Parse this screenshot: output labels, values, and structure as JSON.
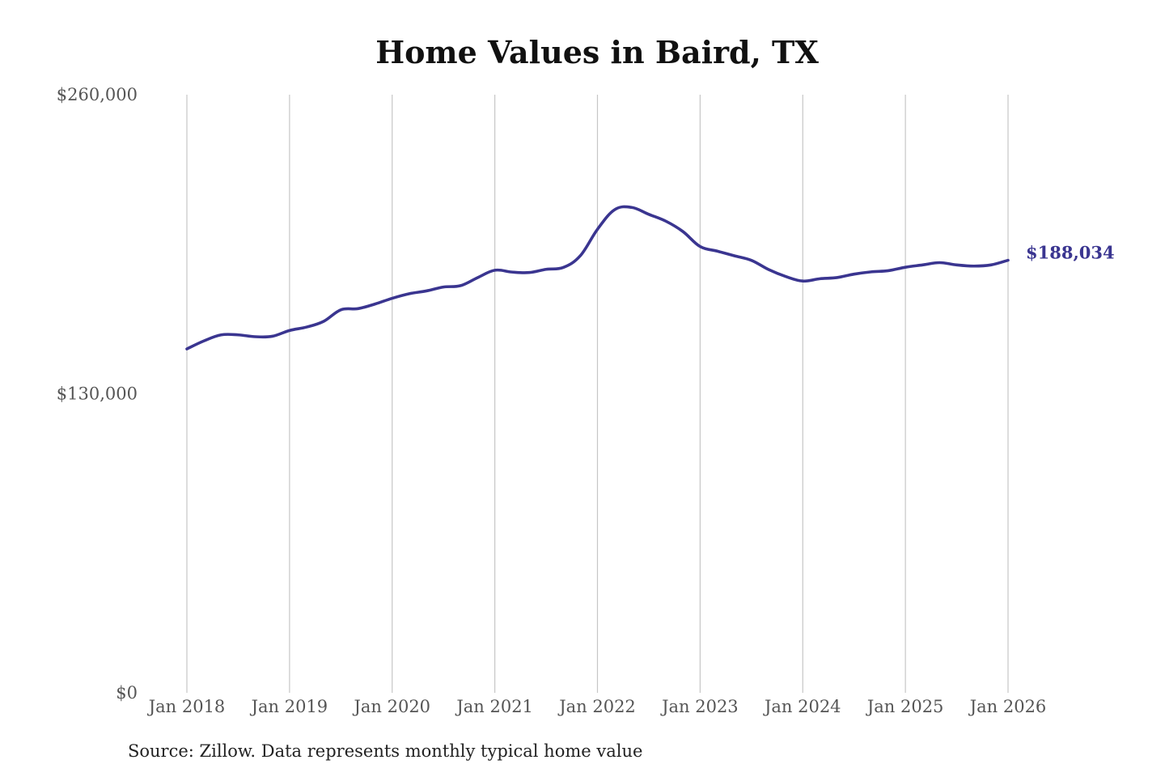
{
  "chart_data": {
    "type": "line",
    "title": "Home Values in Baird, TX",
    "source": "Source: Zillow. Data represents monthly typical home value",
    "ylim": [
      0,
      260000
    ],
    "yticks": [
      {
        "value": 0,
        "label": "$0"
      },
      {
        "value": 130000,
        "label": "$130,000"
      },
      {
        "value": 260000,
        "label": "$260,000"
      }
    ],
    "xticks": [
      {
        "value": 2018,
        "label": "Jan 2018"
      },
      {
        "value": 2019,
        "label": "Jan 2019"
      },
      {
        "value": 2020,
        "label": "Jan 2020"
      },
      {
        "value": 2021,
        "label": "Jan 2021"
      },
      {
        "value": 2022,
        "label": "Jan 2022"
      },
      {
        "value": 2023,
        "label": "Jan 2023"
      },
      {
        "value": 2024,
        "label": "Jan 2024"
      },
      {
        "value": 2025,
        "label": "Jan 2025"
      },
      {
        "value": 2026,
        "label": "Jan 2026"
      }
    ],
    "xlim": [
      2018,
      2026
    ],
    "grid": "vertical",
    "line_color": "#3a3590",
    "end_label": "$188,034",
    "series": [
      {
        "x": [
          "2018-01",
          "2018-03",
          "2018-05",
          "2018-07",
          "2018-09",
          "2018-11",
          "2019-01",
          "2019-03",
          "2019-05",
          "2019-07",
          "2019-09",
          "2019-11",
          "2020-01",
          "2020-03",
          "2020-05",
          "2020-07",
          "2020-09",
          "2020-11",
          "2021-01",
          "2021-03",
          "2021-05",
          "2021-07",
          "2021-09",
          "2021-11",
          "2022-01",
          "2022-03",
          "2022-05",
          "2022-07",
          "2022-09",
          "2022-11",
          "2023-01",
          "2023-03",
          "2023-05",
          "2023-07",
          "2023-09",
          "2023-11",
          "2024-01",
          "2024-03",
          "2024-05",
          "2024-07",
          "2024-09",
          "2024-11",
          "2025-01",
          "2025-03",
          "2025-05",
          "2025-07",
          "2025-09",
          "2025-11",
          "2026-01"
        ],
        "x_num": [
          2018.0,
          2018.167,
          2018.333,
          2018.5,
          2018.667,
          2018.833,
          2019.0,
          2019.167,
          2019.333,
          2019.5,
          2019.667,
          2019.833,
          2020.0,
          2020.167,
          2020.333,
          2020.5,
          2020.667,
          2020.833,
          2021.0,
          2021.167,
          2021.333,
          2021.5,
          2021.667,
          2021.833,
          2022.0,
          2022.167,
          2022.333,
          2022.5,
          2022.667,
          2022.833,
          2023.0,
          2023.167,
          2023.333,
          2023.5,
          2023.667,
          2023.833,
          2024.0,
          2024.167,
          2024.333,
          2024.5,
          2024.667,
          2024.833,
          2025.0,
          2025.167,
          2025.333,
          2025.5,
          2025.667,
          2025.833,
          2026.0
        ],
        "values": [
          149500,
          153000,
          155600,
          155600,
          154800,
          155000,
          157500,
          159000,
          161500,
          166500,
          167000,
          169000,
          171500,
          173500,
          174700,
          176400,
          177000,
          180500,
          183700,
          182900,
          182700,
          184100,
          184900,
          190000,
          201500,
          210000,
          211000,
          208000,
          205000,
          200500,
          194000,
          192000,
          190000,
          188000,
          184000,
          181000,
          179000,
          180000,
          180500,
          182000,
          183000,
          183500,
          185000,
          186000,
          187000,
          186000,
          185500,
          186000,
          188034
        ]
      }
    ]
  }
}
